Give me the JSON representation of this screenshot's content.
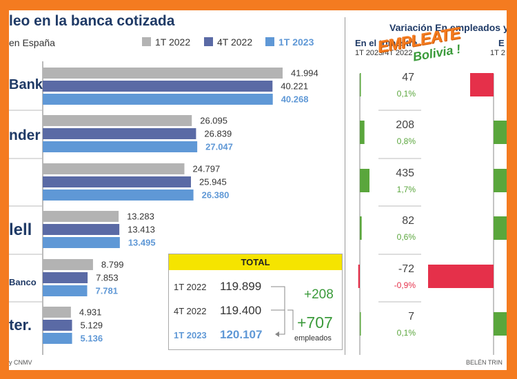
{
  "title": "leo en la banca cotizada",
  "subtitle": "en España",
  "legend": [
    {
      "label": "1T 2022",
      "color": "#b3b3b3"
    },
    {
      "label": "4T 2022",
      "color": "#5a6aa5"
    },
    {
      "label": "1T 2023",
      "color": "#5f98d6"
    }
  ],
  "banks": [
    "Bank",
    "nder",
    "",
    "lell",
    "Banco",
    "ter."
  ],
  "right_header": "Variación En empleados y e",
  "col_trimestre": {
    "title": "En el trimestre",
    "subtitle": "1T 2023/4T 2022"
  },
  "col_second": {
    "title": "E",
    "subtitle": "1T 2"
  },
  "chart_data": {
    "type": "bar",
    "title": "leo en la banca cotizada",
    "subtitle": "en España",
    "categories": [
      "Bank",
      "nder",
      "",
      "lell",
      "Banco",
      "ter."
    ],
    "series": [
      {
        "name": "1T 2022",
        "values": [
          41994,
          26095,
          24797,
          13283,
          8799,
          4931
        ],
        "labels": [
          "41.994",
          "26.095",
          "24.797",
          "13.283",
          "8.799",
          "4.931"
        ]
      },
      {
        "name": "4T 2022",
        "values": [
          40221,
          26839,
          25945,
          13413,
          7853,
          5129
        ],
        "labels": [
          "40.221",
          "26.839",
          "25.945",
          "13.413",
          "7.853",
          "5.129"
        ]
      },
      {
        "name": "1T 2023",
        "values": [
          40268,
          27047,
          26380,
          13495,
          7781,
          5136
        ],
        "labels": [
          "40.268",
          "27.047",
          "26.380",
          "13.495",
          "7.781",
          "5.136"
        ]
      }
    ],
    "variation_quarter": {
      "values": [
        47,
        208,
        435,
        82,
        -72,
        7
      ],
      "labels": [
        "47",
        "208",
        "435",
        "82",
        "-72",
        "7"
      ],
      "percents": [
        "0,1%",
        "0,8%",
        "1,7%",
        "0,6%",
        "-0,9%",
        "0,1%"
      ]
    },
    "variation_second": {
      "signs": [
        -1,
        1,
        1,
        1,
        -1,
        1
      ]
    }
  },
  "total": {
    "header": "TOTAL",
    "rows": [
      {
        "label": "1T 2022",
        "value": "119.899"
      },
      {
        "label": "4T 2022",
        "value": "119.400"
      },
      {
        "label": "1T 2023",
        "value": "120.107"
      }
    ],
    "delta1": "+208",
    "delta2": "+707",
    "unit": "empleados"
  },
  "watermark": {
    "text": "EMPLEATE",
    "sub": "Bolivia !"
  },
  "colors": {
    "positive": "#5aa63c",
    "negative": "#e5304a",
    "title": "#1f3a66",
    "frame": "#f47b20"
  },
  "source": "y CNMV",
  "author": "BELÉN TRIN"
}
